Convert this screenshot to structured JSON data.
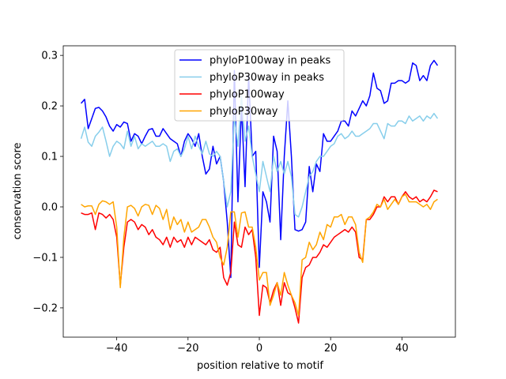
{
  "chart_data": {
    "type": "line",
    "xlabel": "position relative to motif",
    "ylabel": "conservation score",
    "x": [
      -50,
      -49,
      -48,
      -47,
      -46,
      -45,
      -44,
      -43,
      -42,
      -41,
      -40,
      -39,
      -38,
      -37,
      -36,
      -35,
      -34,
      -33,
      -32,
      -31,
      -30,
      -29,
      -28,
      -27,
      -26,
      -25,
      -24,
      -23,
      -22,
      -21,
      -20,
      -19,
      -18,
      -17,
      -16,
      -15,
      -14,
      -13,
      -12,
      -11,
      -10,
      -9,
      -8,
      -7,
      -6,
      -5,
      -4,
      -3,
      -2,
      -1,
      0,
      1,
      2,
      3,
      4,
      5,
      6,
      7,
      8,
      9,
      10,
      11,
      12,
      13,
      14,
      15,
      16,
      17,
      18,
      19,
      20,
      21,
      22,
      23,
      24,
      25,
      26,
      27,
      28,
      29,
      30,
      31,
      32,
      33,
      34,
      35,
      36,
      37,
      38,
      39,
      40,
      41,
      42,
      43,
      44,
      45,
      46,
      47,
      48,
      49,
      50
    ],
    "series": [
      {
        "name": "phyloP100way in peaks",
        "color": "#0000ff",
        "values": [
          0.205,
          0.213,
          0.155,
          0.175,
          0.195,
          0.197,
          0.19,
          0.178,
          0.16,
          0.15,
          0.163,
          0.158,
          0.168,
          0.165,
          0.13,
          0.145,
          0.14,
          0.125,
          0.14,
          0.153,
          0.155,
          0.14,
          0.14,
          0.155,
          0.145,
          0.135,
          0.13,
          0.125,
          0.1,
          0.13,
          0.145,
          0.135,
          0.12,
          0.145,
          0.1,
          0.065,
          0.075,
          0.12,
          0.085,
          0.1,
          0.05,
          -0.03,
          -0.14,
          0.27,
          0.01,
          0.2,
          0.04,
          0.26,
          0.1,
          0.11,
          -0.12,
          0.03,
          0.01,
          -0.03,
          0.14,
          0.11,
          -0.065,
          0.1,
          0.21,
          0.1,
          -0.045,
          -0.048,
          -0.045,
          -0.03,
          0.08,
          0.03,
          0.085,
          0.07,
          0.145,
          0.13,
          0.13,
          0.14,
          0.15,
          0.17,
          0.17,
          0.16,
          0.19,
          0.18,
          0.195,
          0.21,
          0.2,
          0.22,
          0.265,
          0.235,
          0.23,
          0.205,
          0.21,
          0.245,
          0.245,
          0.25,
          0.25,
          0.245,
          0.25,
          0.285,
          0.28,
          0.25,
          0.26,
          0.25,
          0.28,
          0.29,
          0.28
        ]
      },
      {
        "name": "phyloP30way in peaks",
        "color": "#87ceeb",
        "values": [
          0.135,
          0.158,
          0.128,
          0.12,
          0.14,
          0.148,
          0.158,
          0.13,
          0.1,
          0.12,
          0.13,
          0.125,
          0.115,
          0.15,
          0.12,
          0.14,
          0.115,
          0.125,
          0.12,
          0.125,
          0.13,
          0.12,
          0.12,
          0.125,
          0.12,
          0.09,
          0.11,
          0.115,
          0.1,
          0.115,
          0.14,
          0.115,
          0.14,
          0.12,
          0.105,
          0.13,
          0.105,
          0.1,
          0.11,
          0.1,
          0.05,
          0.0,
          0.03,
          0.18,
          0.12,
          0.22,
          0.13,
          0.16,
          0.1,
          0.065,
          0.03,
          0.09,
          0.06,
          0.03,
          0.1,
          0.07,
          0.09,
          0.065,
          0.09,
          0.06,
          -0.015,
          -0.02,
          0.0,
          0.03,
          0.06,
          0.07,
          0.09,
          0.1,
          0.1,
          0.11,
          0.12,
          0.125,
          0.14,
          0.145,
          0.135,
          0.14,
          0.15,
          0.14,
          0.14,
          0.145,
          0.15,
          0.155,
          0.165,
          0.165,
          0.15,
          0.135,
          0.165,
          0.16,
          0.16,
          0.17,
          0.17,
          0.165,
          0.18,
          0.17,
          0.175,
          0.18,
          0.17,
          0.18,
          0.175,
          0.185,
          0.175
        ]
      },
      {
        "name": "phyloP100way",
        "color": "#ff0000",
        "values": [
          -0.012,
          -0.015,
          -0.015,
          -0.012,
          -0.045,
          -0.012,
          -0.015,
          -0.022,
          -0.015,
          -0.025,
          -0.06,
          -0.155,
          -0.08,
          -0.03,
          -0.025,
          -0.03,
          -0.045,
          -0.035,
          -0.04,
          -0.055,
          -0.045,
          -0.06,
          -0.065,
          -0.075,
          -0.06,
          -0.08,
          -0.06,
          -0.07,
          -0.065,
          -0.08,
          -0.06,
          -0.075,
          -0.06,
          -0.065,
          -0.07,
          -0.075,
          -0.065,
          -0.085,
          -0.09,
          -0.08,
          -0.14,
          -0.155,
          -0.13,
          -0.03,
          -0.075,
          -0.08,
          -0.04,
          -0.055,
          -0.045,
          -0.1,
          -0.215,
          -0.155,
          -0.16,
          -0.19,
          -0.165,
          -0.15,
          -0.195,
          -0.15,
          -0.17,
          -0.175,
          -0.2,
          -0.23,
          -0.14,
          -0.12,
          -0.115,
          -0.1,
          -0.1,
          -0.09,
          -0.075,
          -0.08,
          -0.07,
          -0.06,
          -0.055,
          -0.05,
          -0.045,
          -0.05,
          -0.04,
          -0.05,
          -0.1,
          -0.105,
          -0.025,
          -0.025,
          -0.015,
          0.0,
          0.0,
          0.02,
          0.01,
          0.02,
          0.02,
          0.005,
          0.02,
          0.03,
          0.02,
          0.015,
          0.02,
          0.01,
          0.015,
          0.01,
          0.02,
          0.033,
          0.03
        ]
      },
      {
        "name": "phyloP30way",
        "color": "#ffa500",
        "values": [
          0.005,
          0.0,
          0.002,
          0.002,
          -0.015,
          0.005,
          0.012,
          0.01,
          0.005,
          0.01,
          -0.04,
          -0.16,
          -0.06,
          0.0,
          0.003,
          -0.003,
          -0.018,
          0.0,
          0.005,
          0.003,
          -0.015,
          0.003,
          -0.003,
          -0.025,
          -0.005,
          -0.045,
          -0.02,
          -0.035,
          -0.025,
          -0.05,
          -0.03,
          -0.05,
          -0.045,
          -0.04,
          -0.025,
          -0.025,
          -0.04,
          -0.06,
          -0.07,
          -0.1,
          -0.115,
          -0.08,
          -0.01,
          -0.01,
          -0.06,
          -0.012,
          -0.01,
          -0.04,
          -0.04,
          -0.08,
          -0.145,
          -0.13,
          -0.13,
          -0.195,
          -0.175,
          -0.15,
          -0.175,
          -0.13,
          -0.155,
          -0.175,
          -0.19,
          -0.215,
          -0.105,
          -0.1,
          -0.07,
          -0.085,
          -0.075,
          -0.05,
          -0.065,
          -0.035,
          -0.04,
          -0.02,
          -0.02,
          -0.015,
          -0.035,
          -0.02,
          -0.02,
          -0.035,
          -0.09,
          -0.11,
          -0.025,
          -0.02,
          -0.01,
          0.005,
          0.0,
          0.015,
          -0.005,
          0.005,
          0.015,
          0.005,
          0.02,
          0.025,
          0.01,
          0.01,
          0.01,
          0.005,
          0.0,
          0.005,
          -0.005,
          0.01,
          0.015
        ]
      }
    ],
    "xlim": [
      -55,
      55
    ],
    "ylim": [
      -0.258,
      0.319
    ],
    "xticks": [
      {
        "value": -40,
        "label": "−40"
      },
      {
        "value": -20,
        "label": "−20"
      },
      0,
      20,
      40
    ],
    "yticks": [
      {
        "value": -0.2,
        "label": "−0.2"
      },
      {
        "value": -0.1,
        "label": "−0.1"
      },
      {
        "value": 0,
        "label": "0.0"
      },
      0.1,
      0.2,
      0.3
    ],
    "legend": "upper center"
  }
}
